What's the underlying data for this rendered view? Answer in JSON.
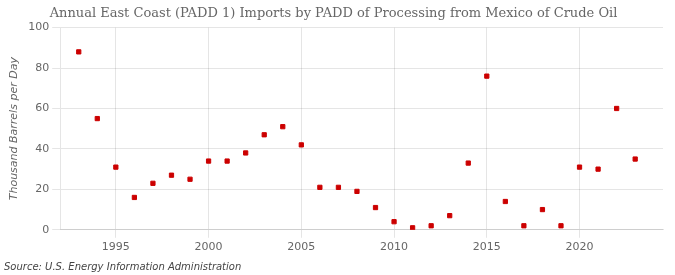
{
  "chart_data": {
    "type": "scatter",
    "title": "Annual East Coast (PADD 1) Imports by PADD of Processing from Mexico of Crude Oil",
    "ylabel": "Thousand Barrels per Day",
    "source": "Source: U.S. Energy Information Administration",
    "x": [
      1993,
      1994,
      1995,
      1996,
      1997,
      1998,
      1999,
      2000,
      2001,
      2002,
      2003,
      2004,
      2005,
      2006,
      2007,
      2008,
      2009,
      2010,
      2011,
      2012,
      2013,
      2014,
      2015,
      2016,
      2017,
      2018,
      2019,
      2020,
      2021,
      2022,
      2023
    ],
    "values": [
      88,
      55,
      31,
      16,
      23,
      27,
      25,
      34,
      34,
      38,
      47,
      51,
      42,
      21,
      21,
      19,
      11,
      4,
      1,
      2,
      7,
      33,
      76,
      14,
      2,
      10,
      2,
      31,
      30,
      60,
      35
    ],
    "color": "#cc0000",
    "marker": "square",
    "xlim": [
      1992.0,
      2024.5
    ],
    "ylim": [
      0,
      100
    ],
    "xticks": [
      1995,
      2000,
      2005,
      2010,
      2015,
      2020
    ],
    "yticks": [
      0,
      20,
      40,
      60,
      80,
      100
    ],
    "grid": true
  }
}
